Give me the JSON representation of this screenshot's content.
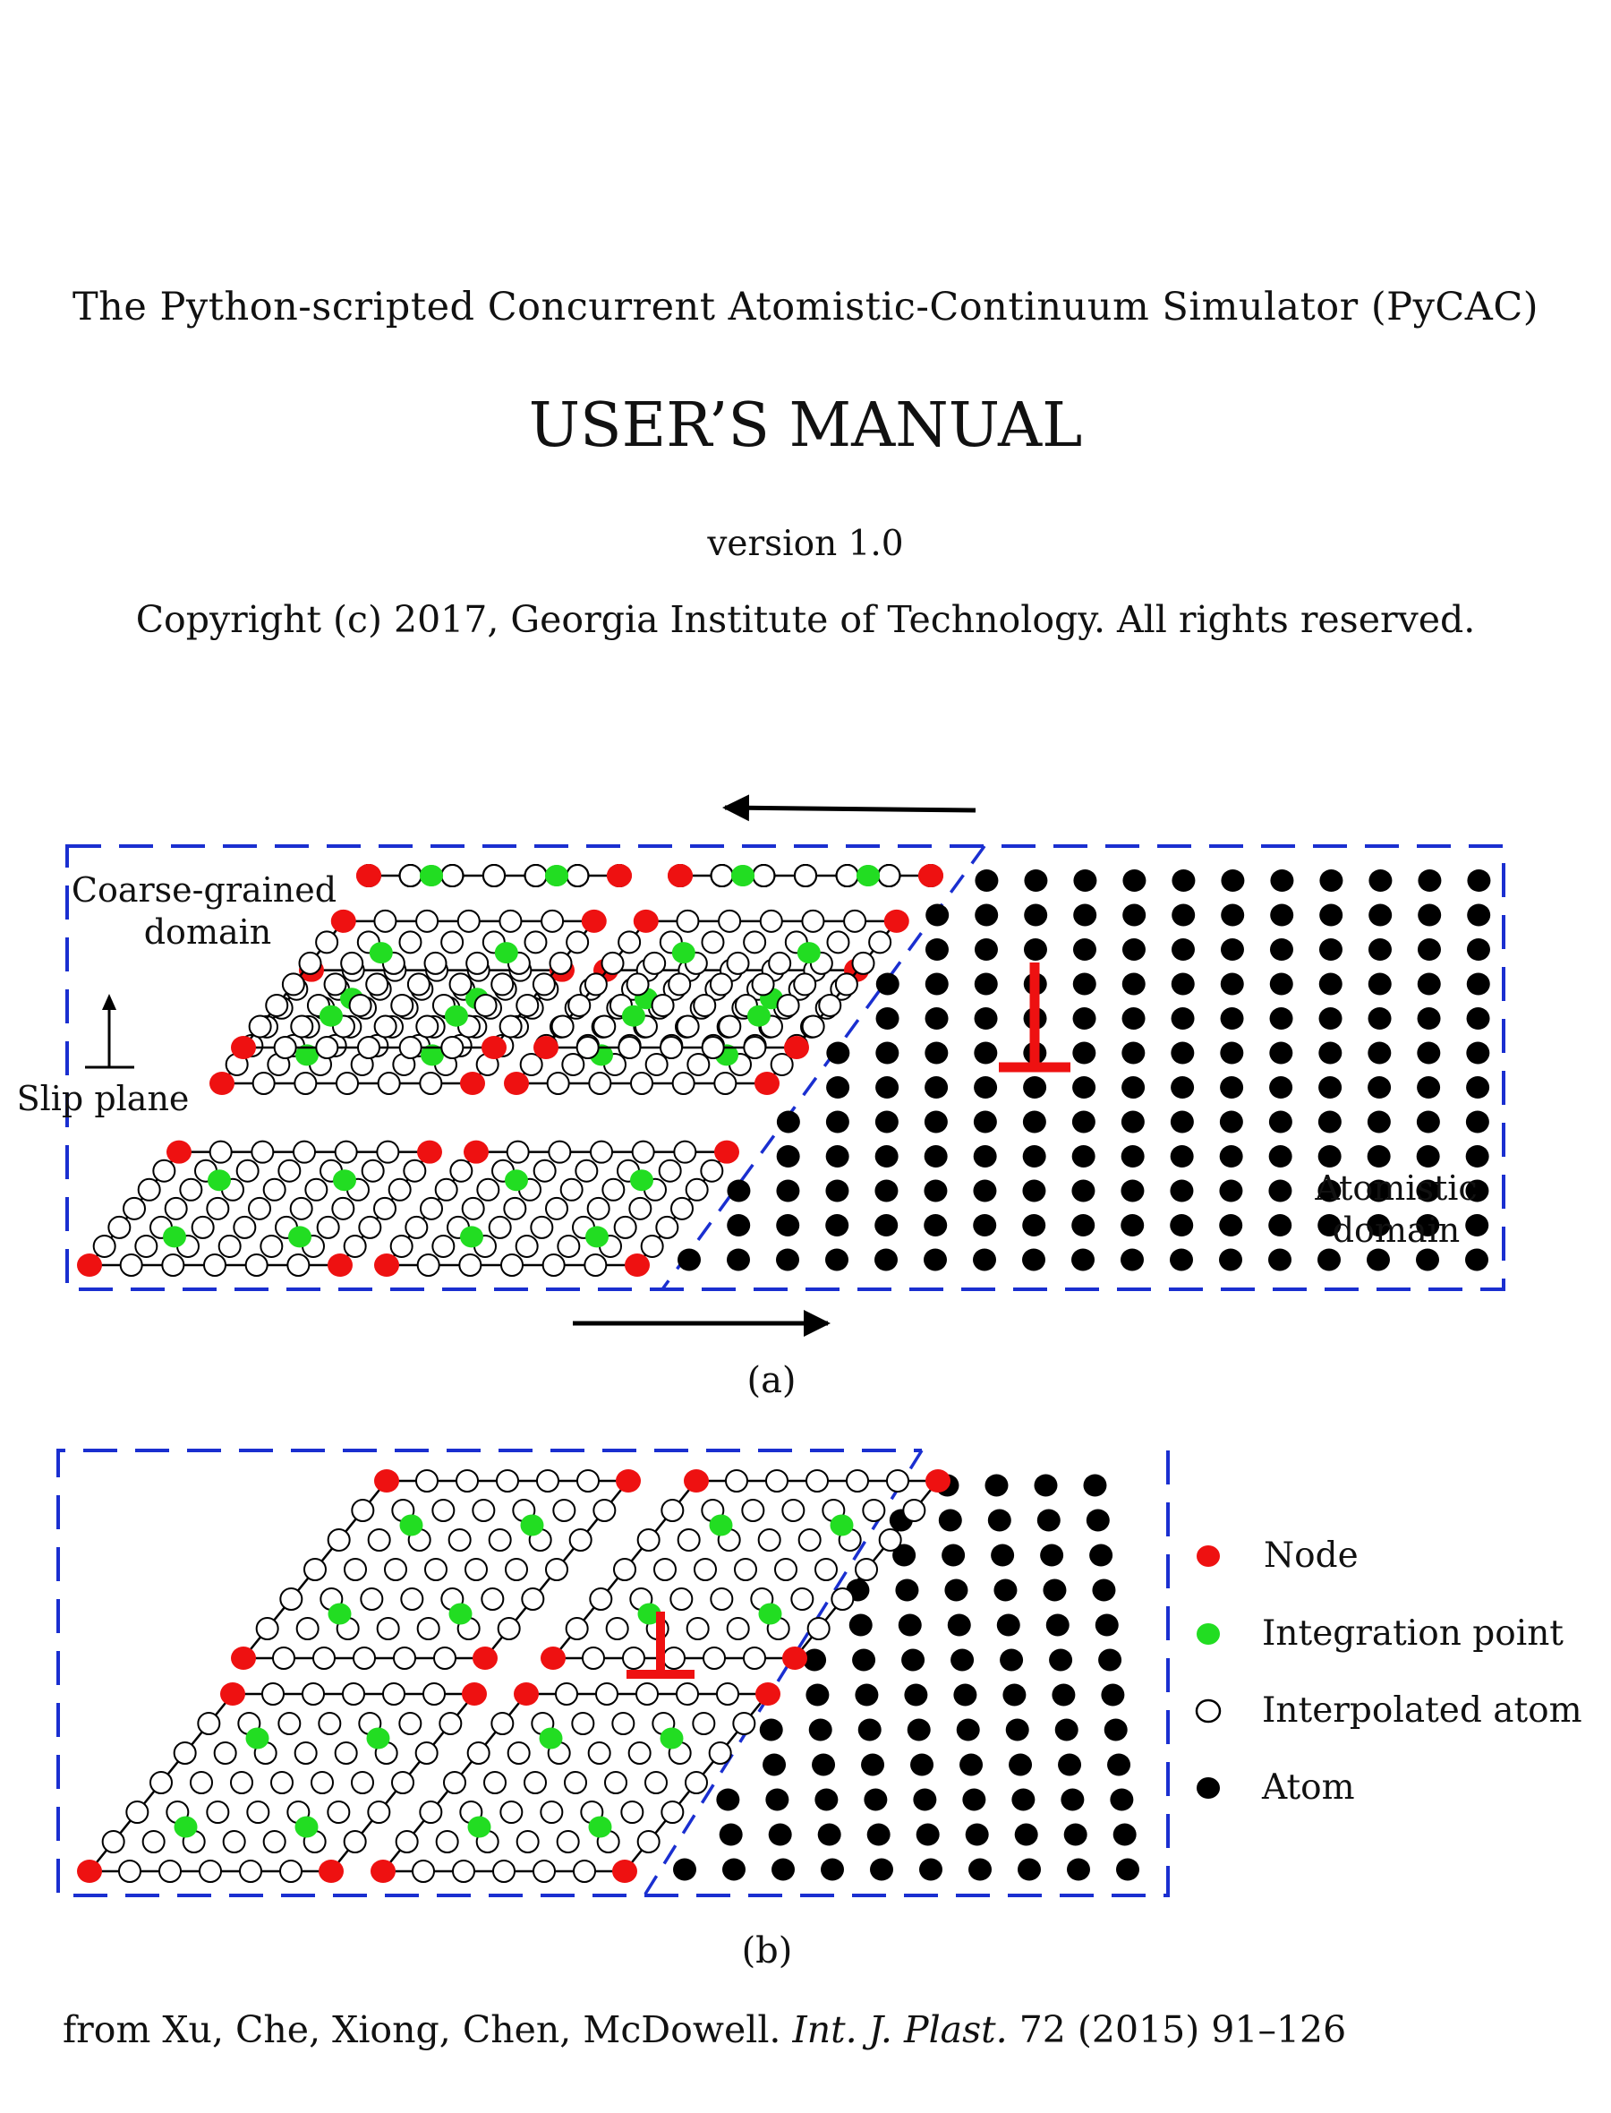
{
  "header": {
    "subtitle": "The Python-scripted Concurrent Atomistic-Continuum Simulator (PyCAC)",
    "title": "USER’S MANUAL",
    "version": "version 1.0",
    "copyright": "Copyright (c) 2017, Georgia Institute of Technology. All rights reserved."
  },
  "figure_a": {
    "caption": "(a)",
    "label_coarse_line1": "Coarse-grained",
    "label_coarse_line2": "domain",
    "label_slip": "Slip plane",
    "label_atomistic_line1": "Atomistic",
    "label_atomistic_line2": "domain"
  },
  "figure_b": {
    "caption": "(b)"
  },
  "legend": {
    "items": [
      {
        "label": "Node",
        "color": "#ee1111",
        "kind": "node"
      },
      {
        "label": "Integration point",
        "color": "#22dd22",
        "kind": "integration"
      },
      {
        "label": "Interpolated atom",
        "color": "#ffffff",
        "kind": "interpolated"
      },
      {
        "label": "Atom",
        "color": "#000000",
        "kind": "atom"
      }
    ]
  },
  "citation": {
    "prefix": "from Xu, Che, Xiong, Chen, McDowell.",
    "journal": "Int. J. Plast.",
    "suffix": "72 (2015) 91–126"
  },
  "colors": {
    "node": "#ee1111",
    "integration": "#22dd22",
    "atom": "#000000",
    "boundary": "#1a2fd0",
    "dislocation": "#ee1111"
  }
}
